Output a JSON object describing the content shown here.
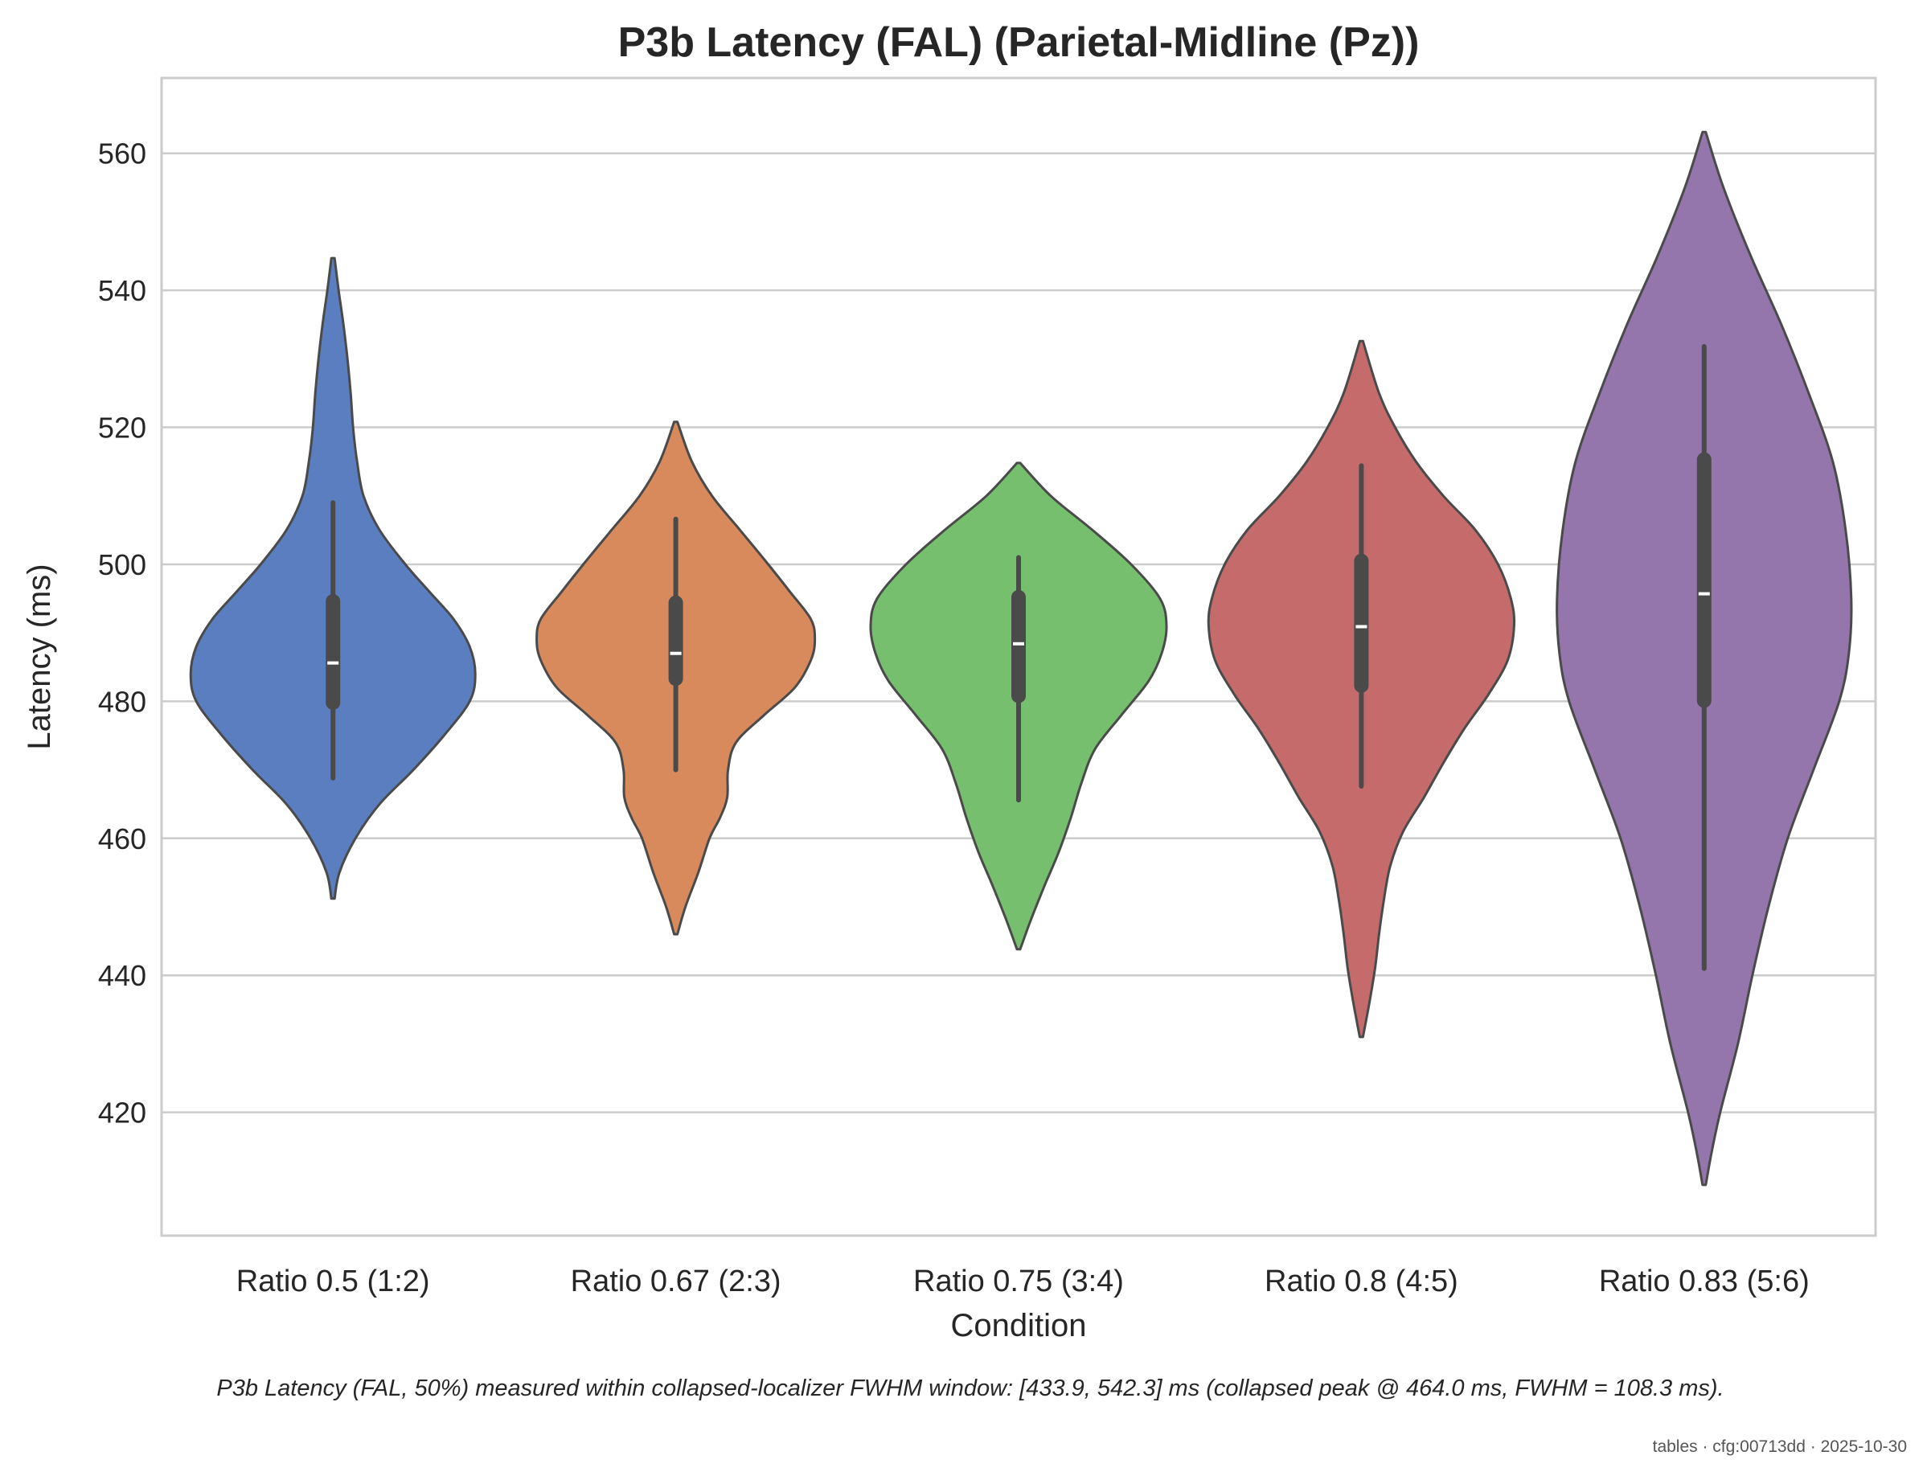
{
  "chart_data": {
    "type": "violin",
    "title": "P3b Latency (FAL) (Parietal-Midline (Pz))",
    "xlabel": "Condition",
    "ylabel": "Latency (ms)",
    "yticks": [
      "420",
      "440",
      "460",
      "480",
      "500",
      "520",
      "540",
      "560"
    ],
    "ylim": [
      402,
      571
    ],
    "grid": "horizontal",
    "categories": [
      "Ratio 0.5 (1:2)",
      "Ratio 0.67 (2:3)",
      "Ratio 0.75 (3:4)",
      "Ratio 0.8 (4:5)",
      "Ratio 0.83 (5:6)"
    ],
    "series": [
      {
        "category": "Ratio 0.5 (1:2)",
        "color": "#5b7ec0",
        "min": 468.8,
        "q1": 479.8,
        "median": 485.6,
        "q3": 494.6,
        "max": 509.0,
        "density": [
          [
            451.2,
            2
          ],
          [
            455,
            8
          ],
          [
            460,
            28
          ],
          [
            465,
            58
          ],
          [
            470,
            100
          ],
          [
            475,
            138
          ],
          [
            480,
            170
          ],
          [
            484,
            177
          ],
          [
            488,
            170
          ],
          [
            492,
            150
          ],
          [
            496,
            120
          ],
          [
            500,
            90
          ],
          [
            505,
            58
          ],
          [
            510,
            38
          ],
          [
            515,
            30
          ],
          [
            520,
            25
          ],
          [
            525,
            22
          ],
          [
            530,
            18
          ],
          [
            535,
            13
          ],
          [
            540,
            7
          ],
          [
            544.7,
            2
          ]
        ]
      },
      {
        "category": "Ratio 0.67 (2:3)",
        "color": "#d88a5d",
        "min": 470.0,
        "q1": 483.3,
        "median": 487.0,
        "q3": 494.4,
        "max": 506.6,
        "density": [
          [
            446,
            2
          ],
          [
            450,
            12
          ],
          [
            455,
            28
          ],
          [
            460,
            42
          ],
          [
            463,
            55
          ],
          [
            466,
            64
          ],
          [
            470,
            65
          ],
          [
            474,
            75
          ],
          [
            478,
            110
          ],
          [
            482,
            148
          ],
          [
            486,
            168
          ],
          [
            489,
            173
          ],
          [
            492,
            168
          ],
          [
            496,
            142
          ],
          [
            500,
            115
          ],
          [
            505,
            80
          ],
          [
            510,
            45
          ],
          [
            515,
            20
          ],
          [
            520.8,
            2
          ]
        ]
      },
      {
        "category": "Ratio 0.75 (3:4)",
        "color": "#76bf6e",
        "min": 465.6,
        "q1": 480.8,
        "median": 488.4,
        "q3": 495.2,
        "max": 501.0,
        "density": [
          [
            443.8,
            2
          ],
          [
            448,
            15
          ],
          [
            453,
            32
          ],
          [
            458,
            50
          ],
          [
            463,
            65
          ],
          [
            468,
            78
          ],
          [
            473,
            95
          ],
          [
            478,
            128
          ],
          [
            483,
            162
          ],
          [
            487,
            178
          ],
          [
            491,
            184
          ],
          [
            495,
            176
          ],
          [
            500,
            140
          ],
          [
            505,
            92
          ],
          [
            510,
            40
          ],
          [
            514.8,
            2
          ]
        ]
      },
      {
        "category": "Ratio 0.8 (4:5)",
        "color": "#c56b6b",
        "min": 467.6,
        "q1": 482.3,
        "median": 490.9,
        "q3": 500.5,
        "max": 514.4,
        "density": [
          [
            431,
            2
          ],
          [
            436,
            10
          ],
          [
            441,
            17
          ],
          [
            446,
            22
          ],
          [
            451,
            28
          ],
          [
            456,
            36
          ],
          [
            461,
            52
          ],
          [
            466,
            78
          ],
          [
            471,
            102
          ],
          [
            476,
            128
          ],
          [
            481,
            158
          ],
          [
            486,
            182
          ],
          [
            491,
            190
          ],
          [
            495,
            186
          ],
          [
            500,
            170
          ],
          [
            505,
            142
          ],
          [
            510,
            102
          ],
          [
            515,
            68
          ],
          [
            520,
            42
          ],
          [
            525,
            22
          ],
          [
            532.6,
            2
          ]
        ]
      },
      {
        "category": "Ratio 0.83 (5:6)",
        "color": "#9475ac",
        "min": 441.0,
        "q1": 480.1,
        "median": 495.7,
        "q3": 515.3,
        "max": 531.8,
        "density": [
          [
            409.4,
            2
          ],
          [
            414,
            9
          ],
          [
            420,
            20
          ],
          [
            430,
            42
          ],
          [
            440,
            60
          ],
          [
            450,
            80
          ],
          [
            460,
            104
          ],
          [
            470,
            136
          ],
          [
            480,
            168
          ],
          [
            487,
            180
          ],
          [
            495,
            183
          ],
          [
            505,
            176
          ],
          [
            515,
            160
          ],
          [
            525,
            130
          ],
          [
            535,
            96
          ],
          [
            545,
            58
          ],
          [
            555,
            24
          ],
          [
            563.1,
            2
          ]
        ]
      }
    ]
  },
  "footnote": "P3b Latency (FAL, 50%) measured within collapsed-localizer FWHM window: [433.9, 542.3] ms (collapsed peak @ 464.0 ms, FWHM = 108.3 ms).",
  "stamp": "tables · cfg:00713dd · 2025-10-30",
  "colors": {
    "grid": "#cccccc",
    "frame": "#cccccc",
    "outline": "#4a4a4a",
    "box": "#4a4a4a",
    "median": "#ffffff"
  }
}
